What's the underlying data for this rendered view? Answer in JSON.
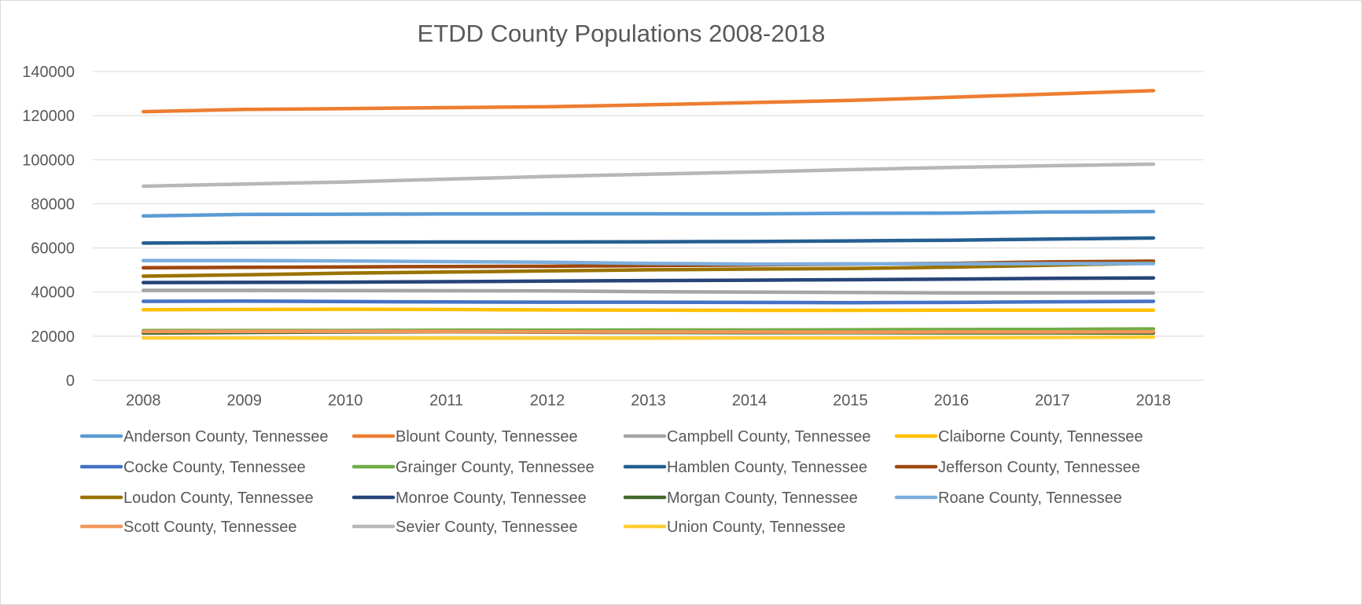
{
  "chart_data": {
    "type": "line",
    "title": "ETDD County Populations 2008-2018",
    "xlabel": "",
    "ylabel": "",
    "x": [
      "2008",
      "2009",
      "2010",
      "2011",
      "2012",
      "2013",
      "2014",
      "2015",
      "2016",
      "2017",
      "2018"
    ],
    "y_ticks": [
      "0",
      "20000",
      "40000",
      "60000",
      "80000",
      "100000",
      "120000",
      "140000"
    ],
    "ylim": [
      0,
      140000
    ],
    "grid": true,
    "legend_position": "bottom",
    "series": [
      {
        "name": "Anderson County, Tennessee",
        "color": "#5b9bd5",
        "values": [
          74500,
          75200,
          75300,
          75400,
          75500,
          75500,
          75400,
          75700,
          75800,
          76300,
          76500
        ]
      },
      {
        "name": "Blount County, Tennessee",
        "color": "#ed7d31",
        "values": [
          121800,
          122800,
          123200,
          123600,
          124000,
          124900,
          125900,
          126900,
          128300,
          129800,
          131300
        ]
      },
      {
        "name": "Campbell County, Tennessee",
        "color": "#a5a5a5",
        "values": [
          40800,
          40800,
          40700,
          40600,
          40500,
          40200,
          40000,
          39800,
          39600,
          39600,
          39600
        ]
      },
      {
        "name": "Claiborne County, Tennessee",
        "color": "#ffc000",
        "values": [
          32000,
          32100,
          32200,
          32100,
          31900,
          31800,
          31700,
          31700,
          31800,
          31800,
          31800
        ]
      },
      {
        "name": "Cocke County, Tennessee",
        "color": "#4472c4",
        "values": [
          35800,
          35900,
          35700,
          35500,
          35400,
          35400,
          35300,
          35200,
          35300,
          35600,
          35800
        ]
      },
      {
        "name": "Grainger County, Tennessee",
        "color": "#70ad47",
        "values": [
          22500,
          22600,
          22600,
          22700,
          22700,
          22800,
          22800,
          22900,
          23000,
          23100,
          23300
        ]
      },
      {
        "name": "Hamblen County, Tennessee",
        "color": "#255e91",
        "values": [
          62200,
          62400,
          62600,
          62700,
          62700,
          62800,
          62900,
          63200,
          63500,
          64000,
          64500
        ]
      },
      {
        "name": "Jefferson County, Tennessee",
        "color": "#9e480e",
        "values": [
          51000,
          51200,
          51400,
          51600,
          51700,
          52000,
          52300,
          52700,
          53000,
          53700,
          54000
        ]
      },
      {
        "name": "Loudon County, Tennessee",
        "color": "#997300",
        "values": [
          47200,
          47800,
          48600,
          49100,
          49600,
          50100,
          50400,
          50700,
          51300,
          52200,
          53100
        ]
      },
      {
        "name": "Monroe County, Tennessee",
        "color": "#264478",
        "values": [
          44300,
          44400,
          44500,
          44700,
          45000,
          45200,
          45400,
          45600,
          45900,
          46200,
          46400
        ]
      },
      {
        "name": "Morgan County, Tennessee",
        "color": "#43682b",
        "values": [
          21400,
          21700,
          21900,
          22000,
          21800,
          21700,
          21600,
          21600,
          21500,
          21500,
          21400
        ]
      },
      {
        "name": "Roane County, Tennessee",
        "color": "#7cafdd",
        "values": [
          54300,
          54300,
          54100,
          53800,
          53500,
          53000,
          52700,
          52800,
          52800,
          52900,
          52900
        ]
      },
      {
        "name": "Scott County, Tennessee",
        "color": "#f1975a",
        "values": [
          22100,
          22200,
          22200,
          22100,
          22000,
          21900,
          21900,
          21800,
          21900,
          21900,
          22000
        ]
      },
      {
        "name": "Sevier County, Tennessee",
        "color": "#b7b7b7",
        "values": [
          88000,
          89000,
          89900,
          91200,
          92400,
          93400,
          94400,
          95500,
          96500,
          97300,
          98000
        ]
      },
      {
        "name": "Union County, Tennessee",
        "color": "#ffcd33",
        "values": [
          19200,
          19200,
          19100,
          19100,
          19100,
          19100,
          19200,
          19200,
          19300,
          19400,
          19600
        ]
      }
    ]
  }
}
